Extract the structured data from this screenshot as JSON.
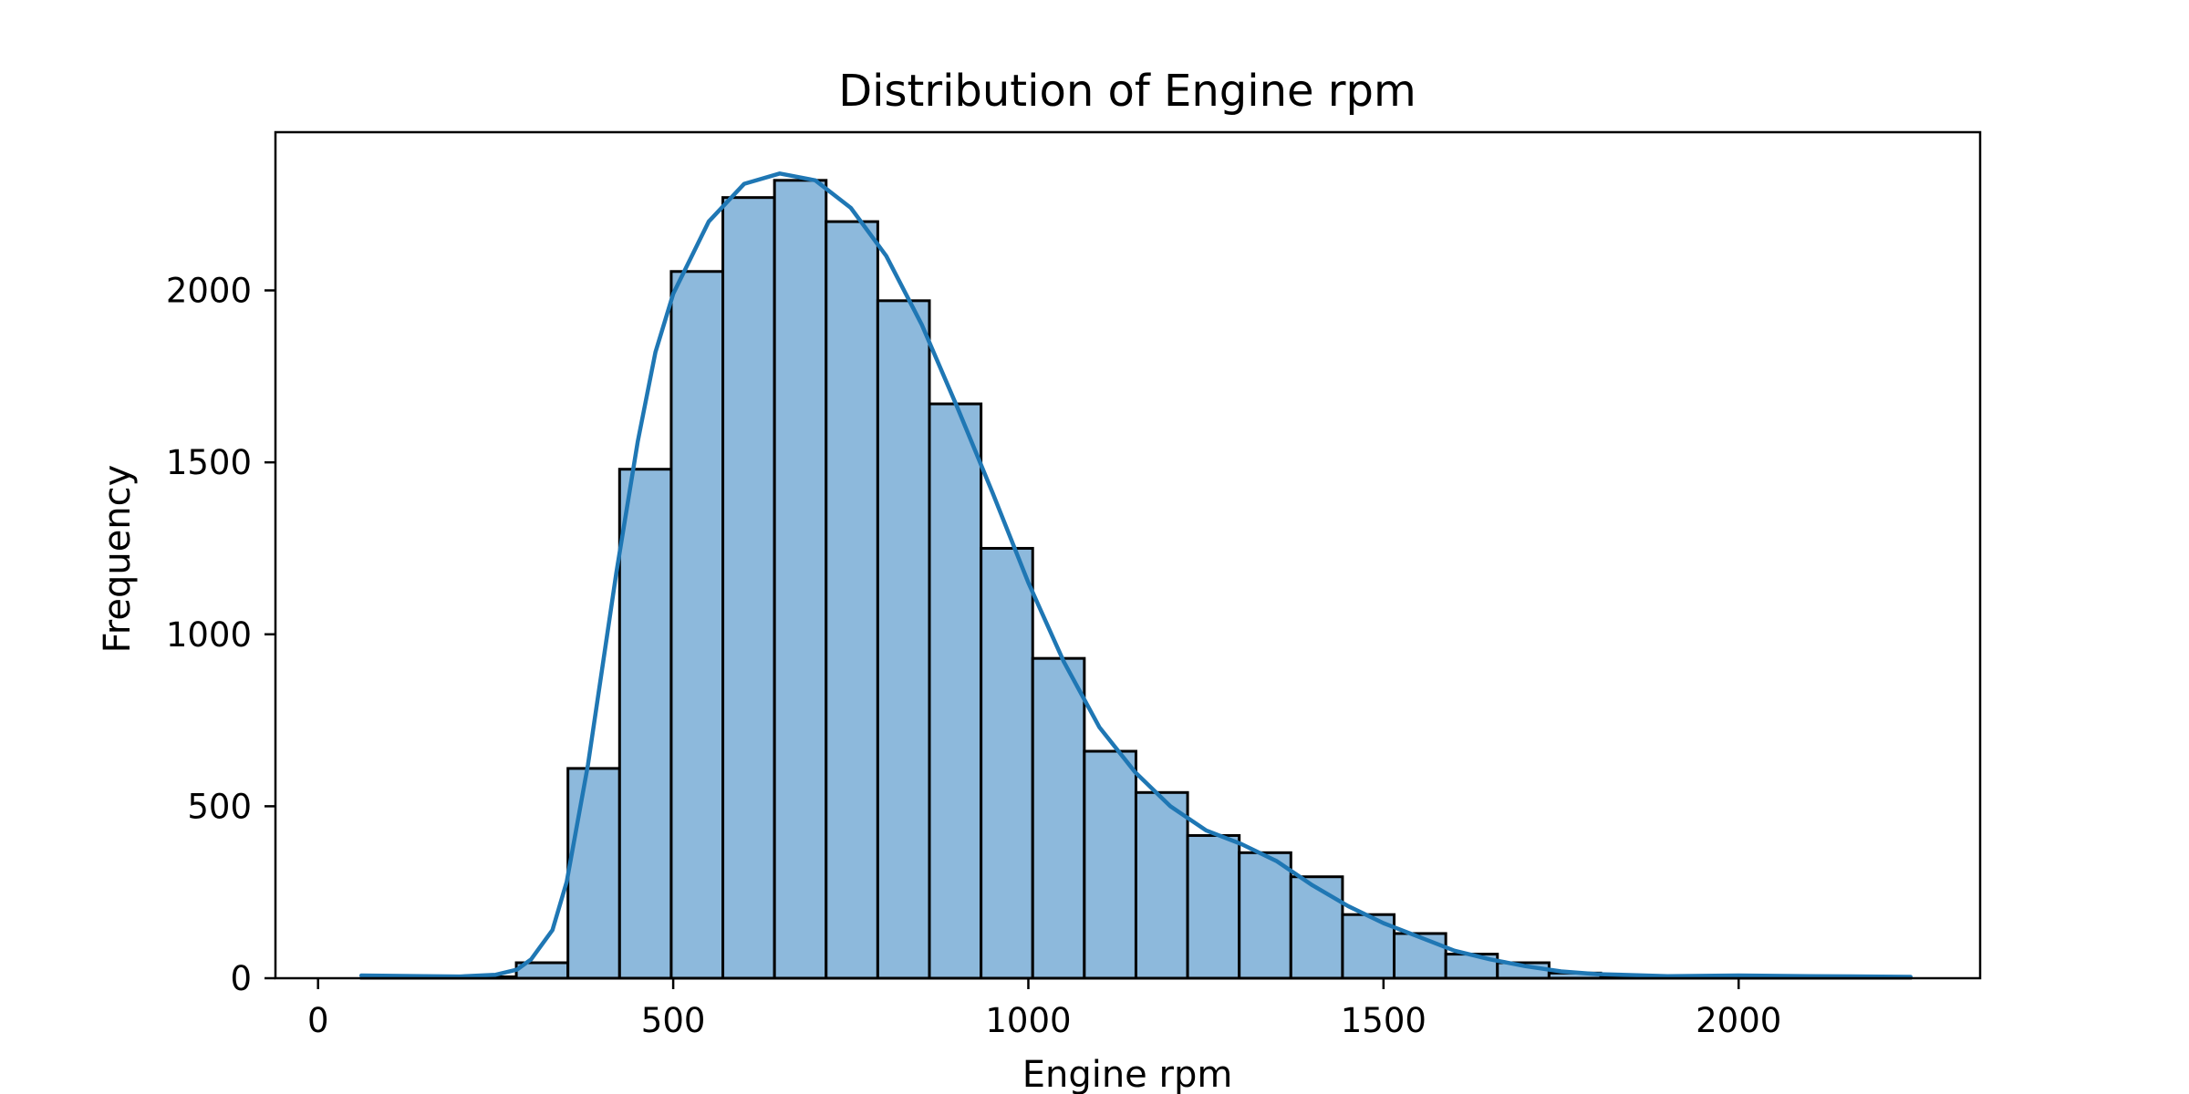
{
  "chart_data": {
    "type": "bar",
    "title": "Distribution of Engine rpm",
    "xlabel": "Engine rpm",
    "ylabel": "Frequency",
    "xlim": [
      -60,
      2340
    ],
    "ylim": [
      0,
      2460
    ],
    "x_ticks": [
      0,
      500,
      1000,
      1500,
      2000
    ],
    "y_ticks": [
      0,
      500,
      1000,
      1500,
      2000
    ],
    "grid": false,
    "legend": "none",
    "colors": {
      "bar_fill": "#8db9dc",
      "bar_edge": "#000000",
      "kde_line": "#1f77b4",
      "frame": "#000000"
    },
    "bin_width": 72.7,
    "bins": [
      {
        "x0": 61.0,
        "x1": 133.7,
        "count": 2
      },
      {
        "x0": 133.7,
        "x1": 206.4,
        "count": 1
      },
      {
        "x0": 206.4,
        "x1": 279.1,
        "count": 4
      },
      {
        "x0": 279.1,
        "x1": 351.8,
        "count": 45
      },
      {
        "x0": 351.8,
        "x1": 424.5,
        "count": 610
      },
      {
        "x0": 424.5,
        "x1": 497.2,
        "count": 1480
      },
      {
        "x0": 497.2,
        "x1": 569.9,
        "count": 2055
      },
      {
        "x0": 569.9,
        "x1": 642.6,
        "count": 2270
      },
      {
        "x0": 642.6,
        "x1": 715.3,
        "count": 2320
      },
      {
        "x0": 715.3,
        "x1": 788.0,
        "count": 2200
      },
      {
        "x0": 788.0,
        "x1": 860.7,
        "count": 1970
      },
      {
        "x0": 860.7,
        "x1": 933.4,
        "count": 1670
      },
      {
        "x0": 933.4,
        "x1": 1006.1,
        "count": 1250
      },
      {
        "x0": 1006.1,
        "x1": 1078.8,
        "count": 930
      },
      {
        "x0": 1078.8,
        "x1": 1151.5,
        "count": 660
      },
      {
        "x0": 1151.5,
        "x1": 1224.2,
        "count": 540
      },
      {
        "x0": 1224.2,
        "x1": 1296.9,
        "count": 415
      },
      {
        "x0": 1296.9,
        "x1": 1369.6,
        "count": 365
      },
      {
        "x0": 1369.6,
        "x1": 1442.3,
        "count": 295
      },
      {
        "x0": 1442.3,
        "x1": 1515.0,
        "count": 185
      },
      {
        "x0": 1515.0,
        "x1": 1587.7,
        "count": 130
      },
      {
        "x0": 1587.7,
        "x1": 1660.4,
        "count": 70
      },
      {
        "x0": 1660.4,
        "x1": 1733.1,
        "count": 45
      },
      {
        "x0": 1733.1,
        "x1": 1805.8,
        "count": 15
      },
      {
        "x0": 1805.8,
        "x1": 1878.5,
        "count": 5
      },
      {
        "x0": 1878.5,
        "x1": 1951.2,
        "count": 3
      },
      {
        "x0": 1951.2,
        "x1": 2023.9,
        "count": 3
      },
      {
        "x0": 2023.9,
        "x1": 2096.6,
        "count": 6
      },
      {
        "x0": 2096.6,
        "x1": 2169.3,
        "count": 2
      },
      {
        "x0": 2169.3,
        "x1": 2242.0,
        "count": 2
      }
    ],
    "kde": {
      "x": [
        61,
        150,
        200,
        250,
        280,
        300,
        330,
        350,
        380,
        400,
        420,
        450,
        475,
        500,
        550,
        600,
        650,
        700,
        750,
        800,
        850,
        900,
        950,
        1000,
        1050,
        1100,
        1150,
        1200,
        1250,
        1300,
        1350,
        1400,
        1450,
        1500,
        1550,
        1600,
        1650,
        1700,
        1750,
        1800,
        1900,
        2000,
        2100,
        2242
      ],
      "y": [
        8,
        6,
        5,
        10,
        25,
        55,
        140,
        280,
        620,
        900,
        1180,
        1560,
        1820,
        1990,
        2200,
        2310,
        2340,
        2320,
        2240,
        2100,
        1900,
        1660,
        1410,
        1150,
        920,
        730,
        600,
        500,
        430,
        390,
        340,
        270,
        210,
        160,
        120,
        80,
        55,
        35,
        20,
        12,
        6,
        8,
        6,
        4
      ]
    }
  }
}
